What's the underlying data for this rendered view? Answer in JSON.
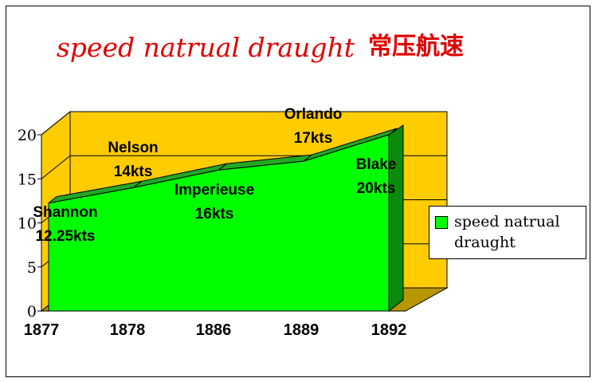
{
  "title": {
    "latin": "speed natrual draught",
    "cjk": "常压航速"
  },
  "colors": {
    "area_front": "#00ff00",
    "area_top": "#22a822",
    "area_side": "#0b8a0b",
    "walls": "#ffcc00",
    "walls_floor": "#b89600",
    "title": "#e00000"
  },
  "chart_data": {
    "type": "area",
    "three_d": true,
    "categories": [
      "1877",
      "1878",
      "1886",
      "1889",
      "1892"
    ],
    "series": [
      {
        "name": "speed natrual draught",
        "values": [
          12.25,
          14,
          16,
          17,
          20
        ]
      }
    ],
    "ylim": [
      0,
      20
    ],
    "yticks": [
      "0",
      "5",
      "10",
      "15",
      "20"
    ],
    "grid": true,
    "legend": "right",
    "data_labels": [
      {
        "name": "Shannon",
        "value": "12.25kts"
      },
      {
        "name": "Nelson",
        "value": "14kts"
      },
      {
        "name": "Imperieuse",
        "value": "16kts"
      },
      {
        "name": "Orlando",
        "value": "17kts"
      },
      {
        "name": "Blake",
        "value": "20kts"
      }
    ]
  }
}
